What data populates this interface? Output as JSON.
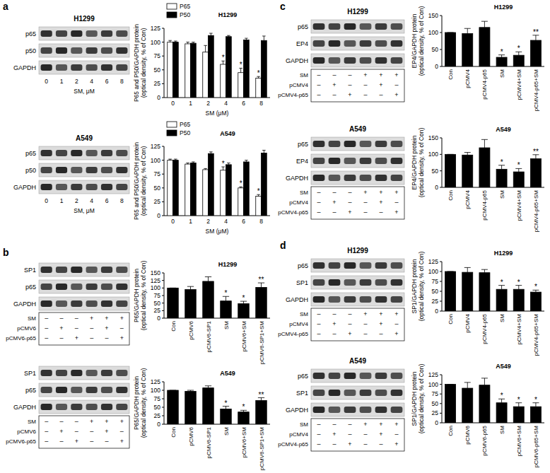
{
  "panel_letters": [
    "a",
    "b",
    "c",
    "d"
  ],
  "blots": [
    {
      "title": "H1299",
      "rows": [
        "p65",
        "p50",
        "GAPDH"
      ],
      "lanes": [
        "0",
        "1",
        "2",
        "4",
        "6",
        "8"
      ],
      "caption": "SM, μM"
    },
    {
      "title": "A549",
      "rows": [
        "p65",
        "p50",
        "GAPDH"
      ],
      "lanes": [
        "0",
        "1",
        "2",
        "4",
        "6",
        "8"
      ],
      "caption": "SM, μM"
    },
    {
      "rows": [
        "SP1",
        "p65",
        "GAPDH"
      ],
      "treatments": [
        {
          "name": "SM",
          "signs": [
            "–",
            "–",
            "–",
            "+",
            "+",
            "+"
          ]
        },
        {
          "name": "pCMV6",
          "signs": [
            "–",
            "+",
            "–",
            "–",
            "+",
            "–"
          ]
        },
        {
          "name": "pCMV6-p65",
          "signs": [
            "–",
            "–",
            "+",
            "–",
            "–",
            "+"
          ]
        }
      ]
    },
    {
      "rows": [
        "SP1",
        "p65",
        "GAPDH"
      ],
      "treatments": [
        {
          "name": "SM",
          "signs": [
            "–",
            "–",
            "–",
            "+",
            "+",
            "+"
          ]
        },
        {
          "name": "pCMV6",
          "signs": [
            "–",
            "+",
            "–",
            "–",
            "+",
            "–"
          ]
        },
        {
          "name": "pCMV6-p65",
          "signs": [
            "–",
            "–",
            "+",
            "–",
            "–",
            "+"
          ]
        }
      ]
    },
    {
      "title": "H1299",
      "rows": [
        "p65",
        "EP4",
        "GAPDH"
      ],
      "treatments": [
        {
          "name": "SM",
          "signs": [
            "–",
            "–",
            "–",
            "+",
            "+",
            "+"
          ]
        },
        {
          "name": "pCMV4",
          "signs": [
            "–",
            "+",
            "–",
            "–",
            "+",
            "–"
          ]
        },
        {
          "name": "pCMV4-p65",
          "signs": [
            "–",
            "–",
            "+",
            "–",
            "–",
            "+"
          ]
        }
      ]
    },
    {
      "title": "A549",
      "rows": [
        "p65",
        "EP4",
        "GAPDH"
      ],
      "treatments": [
        {
          "name": "SM",
          "signs": [
            "–",
            "–",
            "–",
            "+",
            "+",
            "+"
          ]
        },
        {
          "name": "pCMV4",
          "signs": [
            "–",
            "+",
            "–",
            "–",
            "+",
            "–"
          ]
        },
        {
          "name": "pCMV4-p65",
          "signs": [
            "–",
            "–",
            "+",
            "–",
            "–",
            "+"
          ]
        }
      ]
    },
    {
      "title": "H1299",
      "rows": [
        "p65",
        "SP1",
        "GAPDH"
      ],
      "treatments": [
        {
          "name": "SM",
          "signs": [
            "–",
            "–",
            "–",
            "+",
            "+",
            "+"
          ]
        },
        {
          "name": "pCMV4",
          "signs": [
            "–",
            "+",
            "–",
            "–",
            "+",
            "–"
          ]
        },
        {
          "name": "pCMV4-p65",
          "signs": [
            "–",
            "–",
            "+",
            "–",
            "–",
            "+"
          ]
        }
      ]
    },
    {
      "title": "A549",
      "rows": [
        "p65",
        "SP1",
        "GAPDH"
      ],
      "treatments": [
        {
          "name": "SM",
          "signs": [
            "–",
            "–",
            "–",
            "+",
            "+",
            "+"
          ]
        },
        {
          "name": "pCMV4",
          "signs": [
            "–",
            "+",
            "–",
            "–",
            "+",
            "–"
          ]
        },
        {
          "name": "pCMV4-p65",
          "signs": [
            "–",
            "–",
            "+",
            "–",
            "–",
            "+"
          ]
        }
      ]
    }
  ],
  "chart_data": [
    {
      "type": "bar",
      "title": "H1299",
      "x_label": "SM (μM)",
      "y_label": "P65 and P50/GAPDH protein\n(optical density, % of Con)",
      "categories": [
        "0",
        "1",
        "2",
        "4",
        "6",
        "8"
      ],
      "series": [
        {
          "name": "P65",
          "color": "#ffffff",
          "values": [
            100,
            97,
            82,
            60,
            45,
            35
          ],
          "errors": [
            3,
            3,
            12,
            6,
            8,
            3
          ],
          "significance": [
            null,
            null,
            null,
            "*",
            "*",
            "*"
          ]
        },
        {
          "name": "P50",
          "color": "#000000",
          "values": [
            100,
            98,
            112,
            110,
            104,
            103
          ],
          "errors": [
            2,
            2,
            4,
            2,
            3,
            8
          ],
          "significance": [
            null,
            null,
            null,
            null,
            null,
            null
          ]
        }
      ],
      "ylim": [
        0,
        125
      ],
      "yticks": [
        0,
        25,
        50,
        75,
        100,
        125
      ],
      "legend": "upper left"
    },
    {
      "type": "bar",
      "title": "A549",
      "x_label": "SM (μM)",
      "y_label": "P65 and P50/GAPDH protein\n(optical density, % of Con)",
      "categories": [
        "0",
        "1",
        "2",
        "4",
        "6",
        "8"
      ],
      "series": [
        {
          "name": "P65",
          "color": "#ffffff",
          "values": [
            100,
            93,
            83,
            82,
            50,
            35
          ],
          "errors": [
            2,
            2,
            2,
            6,
            2,
            3
          ],
          "significance": [
            null,
            null,
            null,
            "*",
            "*",
            "*"
          ]
        },
        {
          "name": "P50",
          "color": "#000000",
          "values": [
            100,
            95,
            112,
            92,
            97,
            113
          ],
          "errors": [
            2,
            2,
            3,
            3,
            3,
            5
          ],
          "significance": [
            null,
            null,
            null,
            null,
            null,
            null
          ]
        }
      ],
      "ylim": [
        0,
        125
      ],
      "yticks": [
        0,
        25,
        50,
        75,
        100,
        125
      ],
      "legend": "upper left"
    },
    {
      "type": "bar",
      "title": "H1299",
      "y_label": "P65/GAPDH protein\n(optical density, % of Con)",
      "categories": [
        "Con",
        "pCMV6",
        "pCMV6-SP1",
        "SM",
        "pCMV6+SM",
        "pCMV6-SP1+SM"
      ],
      "color": "#000000",
      "values": [
        100,
        95,
        122,
        57,
        48,
        102
      ],
      "errors": [
        0,
        10,
        15,
        15,
        8,
        15
      ],
      "significance": [
        null,
        null,
        null,
        "*",
        "*",
        "**"
      ],
      "ylim": [
        0,
        150
      ],
      "yticks": [
        0,
        25,
        50,
        75,
        100,
        125,
        150
      ]
    },
    {
      "type": "bar",
      "title": "A549",
      "y_label": "P65/GAPDH protein\n(optical density, % of Con)",
      "categories": [
        "Con",
        "pCMV6",
        "pCMV6-SP1",
        "SM",
        "pCMV6+SM",
        "pCMV6-SP1+SM"
      ],
      "color": "#000000",
      "values": [
        100,
        97,
        107,
        45,
        36,
        70
      ],
      "errors": [
        0,
        3,
        6,
        8,
        5,
        8
      ],
      "significance": [
        null,
        null,
        null,
        "*",
        "*",
        "**"
      ],
      "ylim": [
        0,
        125
      ],
      "yticks": [
        0,
        25,
        50,
        75,
        100,
        125
      ]
    },
    {
      "type": "bar",
      "title": "H1299",
      "y_label": "EP4/GAPDH protein\n(optical density, % of Con)",
      "categories": [
        "Con",
        "pCMV4",
        "pCMV4-p65",
        "SM",
        "pCMV4+SM",
        "pCMV4-p65+SM"
      ],
      "color": "#000000",
      "values": [
        100,
        97,
        115,
        27,
        33,
        77
      ],
      "errors": [
        0,
        15,
        18,
        7,
        10,
        15
      ],
      "significance": [
        null,
        null,
        null,
        "*",
        "*",
        "**"
      ],
      "ylim": [
        0,
        150
      ],
      "yticks": [
        0,
        50,
        100,
        150
      ]
    },
    {
      "type": "bar",
      "title": "A549",
      "y_label": "EP4/GAPDH protein\n(optical density, % of Con)",
      "categories": [
        "Con",
        "pCMV4",
        "pCMV4-p65",
        "SM",
        "pCMV4+SM",
        "pCMV4-p65+SM"
      ],
      "color": "#000000",
      "values": [
        100,
        98,
        120,
        55,
        47,
        87
      ],
      "errors": [
        0,
        8,
        25,
        12,
        10,
        12
      ],
      "significance": [
        null,
        null,
        null,
        "*",
        "*",
        "**"
      ],
      "ylim": [
        0,
        150
      ],
      "yticks": [
        0,
        50,
        100,
        150
      ]
    },
    {
      "type": "bar",
      "title": "H1299",
      "y_label": "SP1/GAPDH protein\n(optical density, % of Con)",
      "categories": [
        "Con",
        "pCMV4",
        "pCMV4-p65",
        "SM",
        "pCMV4+SM",
        "pCMV4-p65+SM"
      ],
      "color": "#000000",
      "values": [
        100,
        98,
        97,
        55,
        55,
        48
      ],
      "errors": [
        0,
        12,
        8,
        10,
        10,
        5
      ],
      "significance": [
        null,
        null,
        null,
        "*",
        "*",
        "*"
      ],
      "ylim": [
        0,
        125
      ],
      "yticks": [
        0,
        25,
        50,
        75,
        100,
        125
      ]
    },
    {
      "type": "bar",
      "title": "A549",
      "y_label": "SP1/GAPDH protein\n(optical density, % of Con)",
      "categories": [
        "Con",
        "pCMV6",
        "pCMV6-p65",
        "SM",
        "pCMV6+SM",
        "pCMV6-p65+SM"
      ],
      "color": "#000000",
      "values": [
        100,
        90,
        98,
        52,
        42,
        42
      ],
      "errors": [
        0,
        15,
        18,
        10,
        10,
        10
      ],
      "significance": [
        null,
        null,
        null,
        "*",
        "*",
        "*"
      ],
      "ylim": [
        0,
        125
      ],
      "yticks": [
        0,
        25,
        50,
        75,
        100,
        125
      ]
    }
  ]
}
